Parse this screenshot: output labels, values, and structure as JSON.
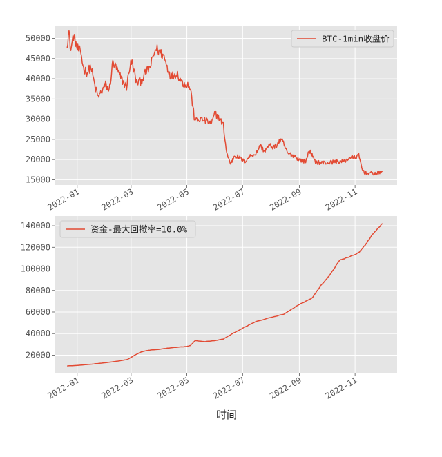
{
  "chart_data": [
    {
      "type": "line",
      "title": "",
      "xlabel": "",
      "ylabel": "",
      "x_ticks": [
        "2022-01",
        "2022-03",
        "2022-05",
        "2022-07",
        "2022-09",
        "2022-11"
      ],
      "y_ticks": [
        15000,
        20000,
        25000,
        30000,
        35000,
        40000,
        45000,
        50000
      ],
      "xlim": [
        "2021-12-08",
        "2022-12-17"
      ],
      "ylim": [
        13700,
        53000
      ],
      "grid": true,
      "legend": "top-right",
      "color": "#E24A33",
      "series": [
        {
          "name": "BTC-1min收盘价",
          "x": [
            "2021-12-21",
            "2021-12-23",
            "2021-12-25",
            "2021-12-28",
            "2022-01-01",
            "2022-01-05",
            "2022-01-08",
            "2022-01-12",
            "2022-01-16",
            "2022-01-21",
            "2022-01-24",
            "2022-01-28",
            "2022-02-01",
            "2022-02-05",
            "2022-02-09",
            "2022-02-13",
            "2022-02-17",
            "2022-02-21",
            "2022-02-24",
            "2022-02-28",
            "2022-03-02",
            "2022-03-07",
            "2022-03-12",
            "2022-03-17",
            "2022-03-22",
            "2022-03-28",
            "2022-04-02",
            "2022-04-06",
            "2022-04-10",
            "2022-04-14",
            "2022-04-20",
            "2022-04-26",
            "2022-05-02",
            "2022-05-05",
            "2022-05-09",
            "2022-05-12",
            "2022-05-16",
            "2022-05-22",
            "2022-05-28",
            "2022-06-01",
            "2022-06-06",
            "2022-06-10",
            "2022-06-13",
            "2022-06-15",
            "2022-06-18",
            "2022-06-22",
            "2022-06-27",
            "2022-07-03",
            "2022-07-10",
            "2022-07-16",
            "2022-07-20",
            "2022-07-25",
            "2022-07-30",
            "2022-08-05",
            "2022-08-10",
            "2022-08-14",
            "2022-08-19",
            "2022-08-26",
            "2022-09-01",
            "2022-09-08",
            "2022-09-12",
            "2022-09-18",
            "2022-09-25",
            "2022-10-02",
            "2022-10-10",
            "2022-10-20",
            "2022-10-26",
            "2022-11-01",
            "2022-11-05",
            "2022-11-09",
            "2022-11-12",
            "2022-11-18",
            "2022-11-25",
            "2022-12-01"
          ],
          "values": [
            49000,
            51500,
            47000,
            50800,
            47500,
            46500,
            42500,
            41500,
            43000,
            37500,
            35500,
            37000,
            38500,
            37000,
            44000,
            42500,
            40500,
            39000,
            38000,
            43500,
            44000,
            39000,
            39500,
            41500,
            43000,
            47500,
            46500,
            45500,
            42500,
            40500,
            41500,
            39000,
            38500,
            37500,
            30500,
            29500,
            30000,
            29500,
            29000,
            31500,
            30000,
            28500,
            22500,
            20500,
            19000,
            21000,
            20500,
            19500,
            21000,
            21500,
            23500,
            22000,
            23500,
            23000,
            24500,
            24500,
            21500,
            21000,
            20000,
            19500,
            22500,
            19500,
            19200,
            19200,
            19500,
            19500,
            20500,
            20500,
            21000,
            17500,
            16700,
            16600,
            16500,
            17000
          ]
        }
      ]
    },
    {
      "type": "line",
      "title": "",
      "xlabel": "时间",
      "ylabel": "",
      "x_ticks": [
        "2022-01",
        "2022-03",
        "2022-05",
        "2022-07",
        "2022-09",
        "2022-11"
      ],
      "y_ticks": [
        20000,
        40000,
        60000,
        80000,
        100000,
        120000,
        140000
      ],
      "xlim": [
        "2021-12-08",
        "2022-12-17"
      ],
      "ylim": [
        3000,
        149000
      ],
      "grid": true,
      "legend": "top-left",
      "color": "#E24A33",
      "series": [
        {
          "name": "资金-最大回撤率=10.0%",
          "x": [
            "2021-12-21",
            "2022-01-01",
            "2022-01-15",
            "2022-02-01",
            "2022-02-15",
            "2022-02-25",
            "2022-03-05",
            "2022-03-12",
            "2022-03-20",
            "2022-04-01",
            "2022-04-15",
            "2022-05-01",
            "2022-05-05",
            "2022-05-10",
            "2022-05-20",
            "2022-06-01",
            "2022-06-10",
            "2022-06-20",
            "2022-07-01",
            "2022-07-15",
            "2022-08-01",
            "2022-08-15",
            "2022-09-01",
            "2022-09-15",
            "2022-09-25",
            "2022-10-05",
            "2022-10-15",
            "2022-10-25",
            "2022-11-05",
            "2022-11-12",
            "2022-11-20",
            "2022-12-01"
          ],
          "values": [
            10000,
            10500,
            11500,
            13000,
            14500,
            16000,
            20000,
            23000,
            24500,
            25500,
            27000,
            28000,
            29000,
            33500,
            32500,
            33500,
            35000,
            40000,
            45000,
            51000,
            55000,
            58000,
            67000,
            73000,
            85000,
            95000,
            108000,
            111000,
            115000,
            122000,
            132000,
            142000
          ]
        }
      ]
    }
  ]
}
